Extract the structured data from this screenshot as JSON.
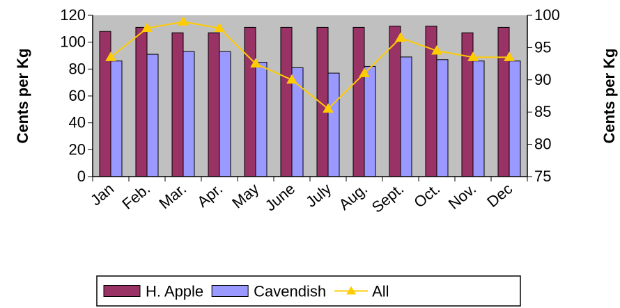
{
  "chart_data": {
    "type": "bar",
    "categories": [
      "Jan",
      "Feb.",
      "Mar.",
      "Apr.",
      "May",
      "June",
      "July",
      "Aug.",
      "Sept.",
      "Oct.",
      "Nov.",
      "Dec"
    ],
    "series": [
      {
        "name": "H. Apple",
        "type": "bar",
        "axis": "left",
        "color": "#993366",
        "values": [
          108,
          111,
          107,
          107,
          111,
          111,
          111,
          111,
          112,
          112,
          107,
          111
        ]
      },
      {
        "name": "Cavendish",
        "type": "bar",
        "axis": "left",
        "color": "#9999ff",
        "values": [
          86,
          91,
          93,
          93,
          85,
          81,
          77,
          82,
          89,
          87,
          86,
          86
        ]
      },
      {
        "name": "All",
        "type": "line",
        "axis": "right",
        "color": "#ffcc00",
        "marker": "triangle",
        "values": [
          93.5,
          98,
          99,
          98,
          92.5,
          90,
          85.5,
          91,
          96.5,
          94.5,
          93.5,
          93.5
        ]
      }
    ],
    "ylabel": "Cents per Kg",
    "ylim": [
      0,
      120
    ],
    "yticks": [
      0,
      20,
      40,
      60,
      80,
      100,
      120
    ],
    "y2label": "Cents per Kg",
    "y2lim": [
      75,
      100
    ],
    "y2ticks": [
      75,
      80,
      85,
      90,
      95,
      100
    ],
    "plot_background": "#c0c0c0",
    "grid": false,
    "legend_position": "bottom"
  }
}
